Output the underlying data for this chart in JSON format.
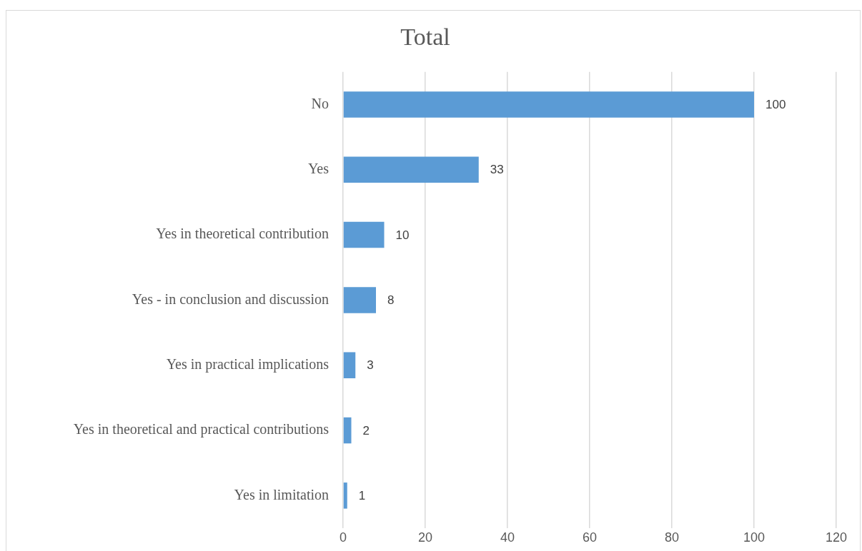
{
  "chart_data": {
    "type": "bar",
    "orientation": "horizontal",
    "title": "Total",
    "categories": [
      "No",
      "Yes",
      "Yes in theoretical contribution",
      "Yes - in conclusion and discussion",
      "Yes in practical implications",
      "Yes in theoretical and practical contributions",
      "Yes in limitation"
    ],
    "values": [
      100,
      33,
      10,
      8,
      3,
      2,
      1
    ],
    "color": "#5b9bd5",
    "xlim": [
      0,
      120
    ],
    "xticks": [
      0,
      20,
      40,
      60,
      80,
      100,
      120
    ],
    "grid": "x",
    "data_labels": true
  }
}
